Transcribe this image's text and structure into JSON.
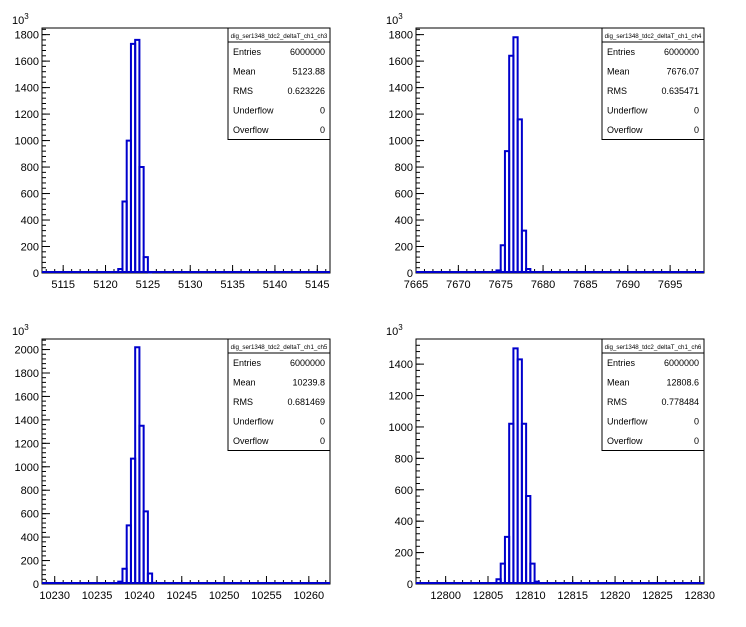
{
  "colors": {
    "line": "#0000cc",
    "axis": "#000000",
    "background": "#ffffff"
  },
  "chart_data": [
    {
      "type": "histogram",
      "stats_title": "dig_ser1348_tdc2_deltaT_ch1_ch3",
      "stats": [
        {
          "label": "Entries",
          "value": "6000000"
        },
        {
          "label": "Mean",
          "value": "5123.88"
        },
        {
          "label": "RMS",
          "value": "0.623226"
        },
        {
          "label": "Underflow",
          "value": "0"
        },
        {
          "label": "Overflow",
          "value": "0"
        }
      ],
      "xlim": [
        5112.5,
        5146.5
      ],
      "ylim": [
        0,
        1850
      ],
      "y_exponent": "10",
      "y_exponent_power": "3",
      "x_ticks": [
        {
          "v": 5115,
          "label": "5115"
        },
        {
          "v": 5120,
          "label": "5120"
        },
        {
          "v": 5125,
          "label": "5125"
        },
        {
          "v": 5130,
          "label": "5130"
        },
        {
          "v": 5135,
          "label": "5135"
        },
        {
          "v": 5140,
          "label": "5140"
        },
        {
          "v": 5145,
          "label": "5145"
        }
      ],
      "y_ticks": [
        {
          "v": 0,
          "label": "0"
        },
        {
          "v": 200,
          "label": "200"
        },
        {
          "v": 400,
          "label": "400"
        },
        {
          "v": 600,
          "label": "600"
        },
        {
          "v": 800,
          "label": "800"
        },
        {
          "v": 1000,
          "label": "1000"
        },
        {
          "v": 1200,
          "label": "1200"
        },
        {
          "v": 1400,
          "label": "1400"
        },
        {
          "v": 1600,
          "label": "1600"
        },
        {
          "v": 1800,
          "label": "1800"
        }
      ],
      "bins": [
        {
          "x0": 5121.5,
          "x1": 5122.0,
          "y": 30
        },
        {
          "x0": 5122.0,
          "x1": 5122.5,
          "y": 540
        },
        {
          "x0": 5122.5,
          "x1": 5123.0,
          "y": 1000
        },
        {
          "x0": 5123.0,
          "x1": 5123.5,
          "y": 1730
        },
        {
          "x0": 5123.5,
          "x1": 5124.0,
          "y": 1760
        },
        {
          "x0": 5124.0,
          "x1": 5124.5,
          "y": 800
        },
        {
          "x0": 5124.5,
          "x1": 5125.0,
          "y": 120
        },
        {
          "x0": 5125.0,
          "x1": 5125.5,
          "y": 5
        }
      ]
    },
    {
      "type": "histogram",
      "stats_title": "dig_ser1348_tdc2_deltaT_ch1_ch4",
      "stats": [
        {
          "label": "Entries",
          "value": "6000000"
        },
        {
          "label": "Mean",
          "value": "7676.07"
        },
        {
          "label": "RMS",
          "value": "0.635471"
        },
        {
          "label": "Underflow",
          "value": "0"
        },
        {
          "label": "Overflow",
          "value": "0"
        }
      ],
      "xlim": [
        7665,
        7699
      ],
      "ylim": [
        0,
        1850
      ],
      "y_exponent": "10",
      "y_exponent_power": "3",
      "x_ticks": [
        {
          "v": 7665,
          "label": "7665"
        },
        {
          "v": 7670,
          "label": "7670"
        },
        {
          "v": 7675,
          "label": "7675"
        },
        {
          "v": 7680,
          "label": "7680"
        },
        {
          "v": 7685,
          "label": "7685"
        },
        {
          "v": 7690,
          "label": "7690"
        },
        {
          "v": 7695,
          "label": "7695"
        }
      ],
      "y_ticks": [
        {
          "v": 0,
          "label": "0"
        },
        {
          "v": 200,
          "label": "200"
        },
        {
          "v": 400,
          "label": "400"
        },
        {
          "v": 600,
          "label": "600"
        },
        {
          "v": 800,
          "label": "800"
        },
        {
          "v": 1000,
          "label": "1000"
        },
        {
          "v": 1200,
          "label": "1200"
        },
        {
          "v": 1400,
          "label": "1400"
        },
        {
          "v": 1600,
          "label": "1600"
        },
        {
          "v": 1800,
          "label": "1800"
        }
      ],
      "bins": [
        {
          "x0": 7674.5,
          "x1": 7675.0,
          "y": 20
        },
        {
          "x0": 7675.0,
          "x1": 7675.5,
          "y": 210
        },
        {
          "x0": 7675.5,
          "x1": 7676.0,
          "y": 920
        },
        {
          "x0": 7676.0,
          "x1": 7676.5,
          "y": 1640
        },
        {
          "x0": 7676.5,
          "x1": 7677.0,
          "y": 1780
        },
        {
          "x0": 7677.0,
          "x1": 7677.5,
          "y": 1160
        },
        {
          "x0": 7677.5,
          "x1": 7678.0,
          "y": 320
        },
        {
          "x0": 7678.0,
          "x1": 7678.5,
          "y": 30
        }
      ]
    },
    {
      "type": "histogram",
      "stats_title": "dig_ser1348_tdc2_deltaT_ch1_ch5",
      "stats": [
        {
          "label": "Entries",
          "value": "6000000"
        },
        {
          "label": "Mean",
          "value": "10239.8"
        },
        {
          "label": "RMS",
          "value": "0.681469"
        },
        {
          "label": "Underflow",
          "value": "0"
        },
        {
          "label": "Overflow",
          "value": "0"
        }
      ],
      "xlim": [
        10228.5,
        10262.5
      ],
      "ylim": [
        0,
        2090
      ],
      "y_exponent": "10",
      "y_exponent_power": "3",
      "x_ticks": [
        {
          "v": 10230,
          "label": "10230"
        },
        {
          "v": 10235,
          "label": "10235"
        },
        {
          "v": 10240,
          "label": "10240"
        },
        {
          "v": 10245,
          "label": "10245"
        },
        {
          "v": 10250,
          "label": "10250"
        },
        {
          "v": 10255,
          "label": "10255"
        },
        {
          "v": 10260,
          "label": "10260"
        }
      ],
      "y_ticks": [
        {
          "v": 0,
          "label": "0"
        },
        {
          "v": 200,
          "label": "200"
        },
        {
          "v": 400,
          "label": "400"
        },
        {
          "v": 600,
          "label": "600"
        },
        {
          "v": 800,
          "label": "800"
        },
        {
          "v": 1000,
          "label": "1000"
        },
        {
          "v": 1200,
          "label": "1200"
        },
        {
          "v": 1400,
          "label": "1400"
        },
        {
          "v": 1600,
          "label": "1600"
        },
        {
          "v": 1800,
          "label": "1800"
        },
        {
          "v": 2000,
          "label": "2000"
        }
      ],
      "bins": [
        {
          "x0": 10237.5,
          "x1": 10238.0,
          "y": 20
        },
        {
          "x0": 10238.0,
          "x1": 10238.5,
          "y": 130
        },
        {
          "x0": 10238.5,
          "x1": 10239.0,
          "y": 500
        },
        {
          "x0": 10239.0,
          "x1": 10239.5,
          "y": 1070
        },
        {
          "x0": 10239.5,
          "x1": 10240.0,
          "y": 2020
        },
        {
          "x0": 10240.0,
          "x1": 10240.5,
          "y": 1350
        },
        {
          "x0": 10240.5,
          "x1": 10241.0,
          "y": 620
        },
        {
          "x0": 10241.0,
          "x1": 10241.5,
          "y": 90
        },
        {
          "x0": 10241.5,
          "x1": 10242.0,
          "y": 10
        }
      ]
    },
    {
      "type": "histogram",
      "stats_title": "dig_ser1348_tdc2_deltaT_ch1_ch6",
      "stats": [
        {
          "label": "Entries",
          "value": "6000000"
        },
        {
          "label": "Mean",
          "value": "12808.6"
        },
        {
          "label": "RMS",
          "value": "0.778484"
        },
        {
          "label": "Underflow",
          "value": "0"
        },
        {
          "label": "Overflow",
          "value": "0"
        }
      ],
      "xlim": [
        12796.5,
        12830.5
      ],
      "ylim": [
        0,
        1560
      ],
      "y_exponent": "10",
      "y_exponent_power": "3",
      "x_ticks": [
        {
          "v": 12800,
          "label": "12800"
        },
        {
          "v": 12805,
          "label": "12805"
        },
        {
          "v": 12810,
          "label": "12810"
        },
        {
          "v": 12815,
          "label": "12815"
        },
        {
          "v": 12820,
          "label": "12820"
        },
        {
          "v": 12825,
          "label": "12825"
        },
        {
          "v": 12830,
          "label": "12830"
        }
      ],
      "y_ticks": [
        {
          "v": 0,
          "label": "0"
        },
        {
          "v": 200,
          "label": "200"
        },
        {
          "v": 400,
          "label": "400"
        },
        {
          "v": 600,
          "label": "600"
        },
        {
          "v": 800,
          "label": "800"
        },
        {
          "v": 1000,
          "label": "1000"
        },
        {
          "v": 1200,
          "label": "1200"
        },
        {
          "v": 1400,
          "label": "1400"
        }
      ],
      "bins": [
        {
          "x0": 12806.0,
          "x1": 12806.5,
          "y": 30
        },
        {
          "x0": 12806.5,
          "x1": 12807.0,
          "y": 130
        },
        {
          "x0": 12807.0,
          "x1": 12807.5,
          "y": 300
        },
        {
          "x0": 12807.5,
          "x1": 12808.0,
          "y": 1020
        },
        {
          "x0": 12808.0,
          "x1": 12808.5,
          "y": 1500
        },
        {
          "x0": 12808.5,
          "x1": 12809.0,
          "y": 1430
        },
        {
          "x0": 12809.0,
          "x1": 12809.5,
          "y": 1020
        },
        {
          "x0": 12809.5,
          "x1": 12810.0,
          "y": 560
        },
        {
          "x0": 12810.0,
          "x1": 12810.5,
          "y": 130
        },
        {
          "x0": 12810.5,
          "x1": 12811.0,
          "y": 15
        }
      ]
    }
  ]
}
